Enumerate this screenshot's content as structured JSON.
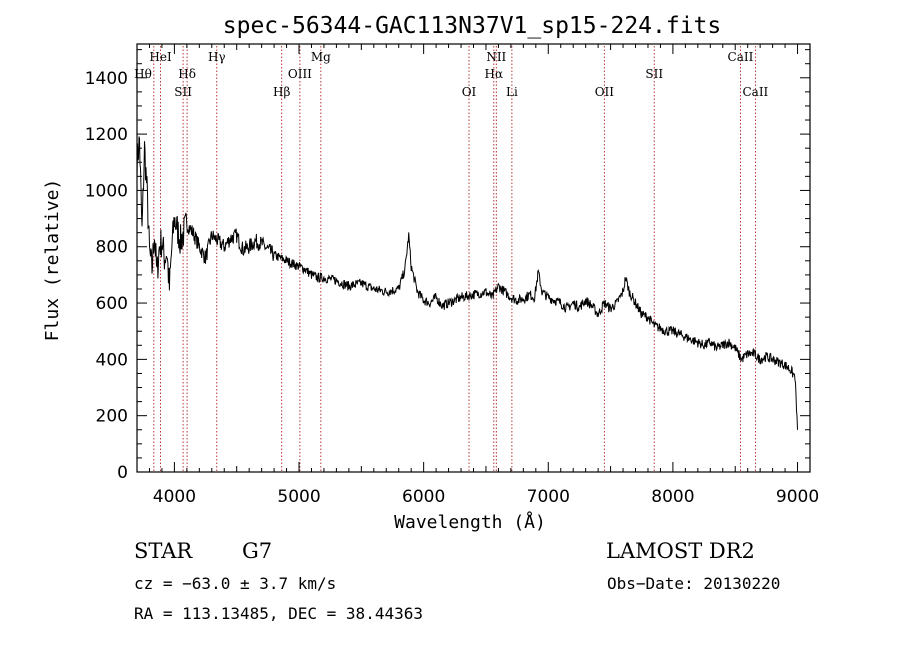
{
  "chart_data": {
    "type": "line",
    "title": "spec-56344-GAC113N37V1_sp15-224.fits",
    "xlabel": "Wavelength (Å)",
    "ylabel": "Flux (relative)",
    "xlim": [
      3700,
      9100
    ],
    "ylim": [
      0,
      1520
    ],
    "xticks": [
      4000,
      5000,
      6000,
      7000,
      8000,
      9000
    ],
    "yticks": [
      0,
      200,
      400,
      600,
      800,
      1000,
      1200,
      1400
    ],
    "grid": false,
    "line_color": "#000000",
    "marker_color": "#b22222",
    "series": [
      {
        "x": [
          3700,
          3720,
          3740,
          3760,
          3780,
          3800,
          3820,
          3840,
          3860,
          3880,
          3900,
          3920,
          3940,
          3960,
          3980,
          4000,
          4050,
          4100,
          4150,
          4200,
          4250,
          4300,
          4350,
          4400,
          4450,
          4500,
          4550,
          4600,
          4650,
          4700,
          4750,
          4800,
          4850,
          4900,
          4950,
          5000,
          5050,
          5100,
          5150,
          5200,
          5300,
          5400,
          5500,
          5600,
          5700,
          5800,
          5850,
          5880,
          5900,
          5950,
          6000,
          6050,
          6100,
          6150,
          6200,
          6250,
          6300,
          6400,
          6500,
          6550,
          6600,
          6650,
          6700,
          6750,
          6800,
          6850,
          6890,
          6920,
          6950,
          7000,
          7050,
          7100,
          7150,
          7200,
          7250,
          7300,
          7350,
          7400,
          7450,
          7500,
          7550,
          7600,
          7620,
          7650,
          7700,
          7750,
          7800,
          7850,
          7900,
          7950,
          8000,
          8050,
          8100,
          8150,
          8200,
          8250,
          8300,
          8350,
          8400,
          8450,
          8500,
          8550,
          8600,
          8650,
          8700,
          8750,
          8800,
          8850,
          8900,
          8950,
          8960,
          8980,
          9000
        ],
        "y": [
          1100,
          1180,
          850,
          1150,
          1000,
          780,
          720,
          850,
          700,
          800,
          820,
          760,
          780,
          650,
          800,
          900,
          820,
          880,
          850,
          800,
          760,
          840,
          820,
          800,
          830,
          840,
          790,
          800,
          820,
          810,
          790,
          770,
          760,
          750,
          740,
          730,
          720,
          700,
          690,
          690,
          680,
          660,
          670,
          650,
          640,
          650,
          720,
          840,
          730,
          640,
          610,
          600,
          620,
          590,
          600,
          610,
          620,
          630,
          640,
          620,
          660,
          640,
          620,
          610,
          615,
          630,
          620,
          710,
          640,
          620,
          610,
          600,
          580,
          600,
          585,
          610,
          590,
          560,
          600,
          580,
          600,
          640,
          690,
          640,
          600,
          560,
          550,
          520,
          510,
          500,
          500,
          490,
          480,
          470,
          460,
          450,
          460,
          440,
          450,
          460,
          440,
          400,
          420,
          420,
          400,
          410,
          400,
          390,
          380,
          360,
          350,
          340,
          150
        ]
      }
    ],
    "line_markers": [
      {
        "wavelength": 3889,
        "label": "HeI",
        "row": 0,
        "anchor": "middle"
      },
      {
        "wavelength": 3835,
        "label": "Hθ",
        "row": 1,
        "anchor": "end"
      },
      {
        "wavelength": 4102,
        "label": "Hδ",
        "row": 1,
        "anchor": "middle"
      },
      {
        "wavelength": 4070,
        "label": "SII",
        "row": 2,
        "anchor": "middle"
      },
      {
        "wavelength": 4340,
        "label": "Hγ",
        "row": 0,
        "anchor": "middle"
      },
      {
        "wavelength": 4861,
        "label": "Hβ",
        "row": 2,
        "anchor": "middle"
      },
      {
        "wavelength": 5007,
        "label": "OIII",
        "row": 1,
        "anchor": "middle"
      },
      {
        "wavelength": 5175,
        "label": "Mg",
        "row": 0,
        "anchor": "middle"
      },
      {
        "wavelength": 6364,
        "label": "OI",
        "row": 2,
        "anchor": "middle"
      },
      {
        "wavelength": 6583,
        "label": "NII",
        "row": 0,
        "anchor": "middle"
      },
      {
        "wavelength": 6563,
        "label": "Hα",
        "row": 1,
        "anchor": "middle"
      },
      {
        "wavelength": 6708,
        "label": "Li",
        "row": 2,
        "anchor": "middle"
      },
      {
        "wavelength": 7450,
        "label": "OII",
        "row": 2,
        "anchor": "middle"
      },
      {
        "wavelength": 7850,
        "label": "SII",
        "row": 1,
        "anchor": "middle"
      },
      {
        "wavelength": 8542,
        "label": "CaII",
        "row": 0,
        "anchor": "middle"
      },
      {
        "wavelength": 8662,
        "label": "CaII",
        "row": 2,
        "anchor": "middle"
      }
    ]
  },
  "info": {
    "object_class": "STAR",
    "subclass": "G7",
    "survey": "LAMOST DR2",
    "cz": "cz = −63.0 ± 3.7 km/s",
    "obs_date": "Obs−Date: 20130220",
    "coords": "RA = 113.13485, DEC =  38.44363"
  }
}
